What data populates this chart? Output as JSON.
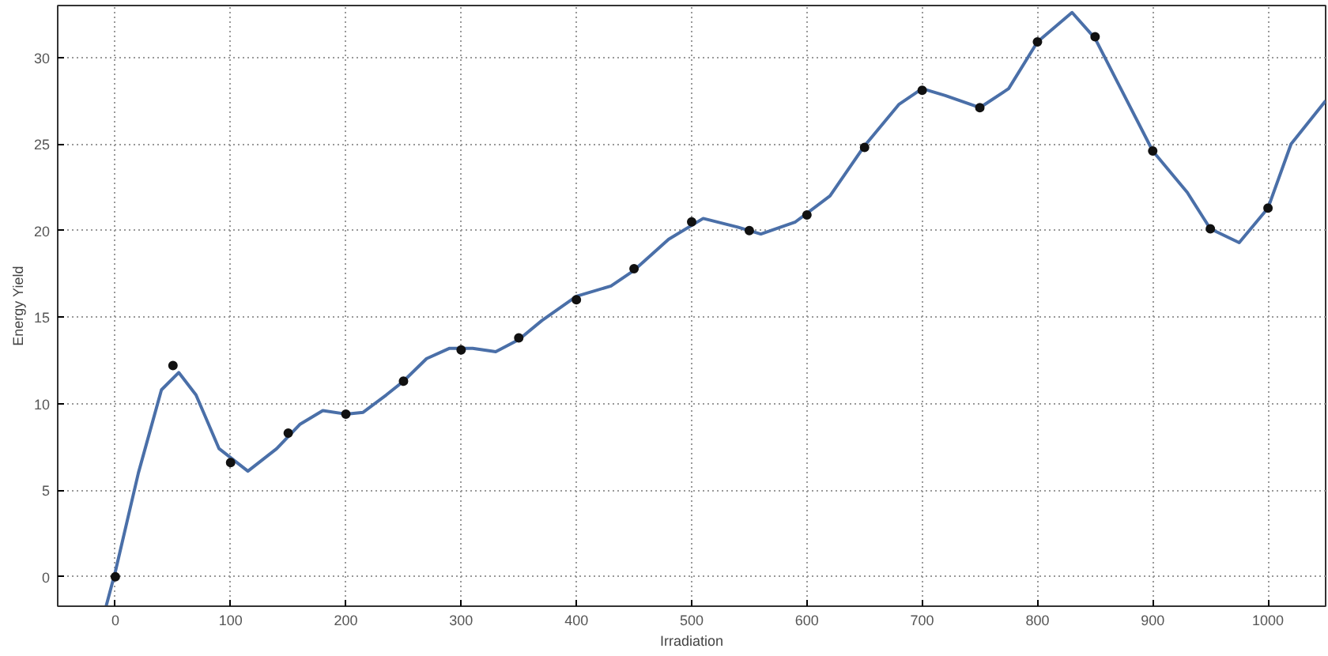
{
  "chart_data": {
    "type": "line",
    "xlabel": "Irradiation",
    "ylabel": "Energy Yield",
    "xlim": [
      -50,
      1050
    ],
    "ylim": [
      -1.7,
      33
    ],
    "xticks": [
      0,
      100,
      200,
      300,
      400,
      500,
      600,
      700,
      800,
      900,
      1000
    ],
    "yticks": [
      0,
      5,
      10,
      15,
      20,
      25,
      30
    ],
    "grid": true,
    "series": [
      {
        "color": "#4a6fa8",
        "marker": "none",
        "line_style": "solid",
        "x": [
          -8,
          0,
          20,
          40,
          55,
          70,
          90,
          115,
          140,
          160,
          180,
          200,
          215,
          235,
          250,
          270,
          290,
          310,
          330,
          350,
          370,
          400,
          430,
          450,
          480,
          510,
          540,
          560,
          590,
          620,
          650,
          680,
          700,
          720,
          750,
          775,
          800,
          830,
          850,
          870,
          900,
          930,
          950,
          975,
          1000,
          1020,
          1050
        ],
        "values": [
          -1.7,
          0.3,
          6,
          10.8,
          11.8,
          10.5,
          7.4,
          6.1,
          7.4,
          8.8,
          9.6,
          9.4,
          9.5,
          10.5,
          11.3,
          12.6,
          13.2,
          13.2,
          13,
          13.7,
          14.8,
          16.2,
          16.8,
          17.7,
          19.5,
          20.7,
          20.2,
          19.8,
          20.5,
          22,
          24.9,
          27.3,
          28.2,
          27.8,
          27.1,
          28.2,
          30.9,
          32.6,
          31.1,
          28.5,
          24.6,
          22.2,
          20.1,
          19.3,
          21.3,
          25,
          27.5
        ]
      },
      {
        "type": "scatter",
        "color": "#111111",
        "marker": "circle",
        "x": [
          0,
          50,
          100,
          150,
          200,
          250,
          300,
          350,
          400,
          450,
          500,
          550,
          600,
          650,
          700,
          750,
          800,
          850,
          900,
          950,
          1000
        ],
        "values": [
          0,
          12.2,
          6.6,
          8.3,
          9.4,
          11.3,
          13.1,
          13.8,
          16,
          17.8,
          20.5,
          20,
          20.9,
          24.8,
          28.1,
          27.1,
          30.9,
          31.2,
          24.6,
          20.1,
          21.3
        ]
      }
    ]
  }
}
